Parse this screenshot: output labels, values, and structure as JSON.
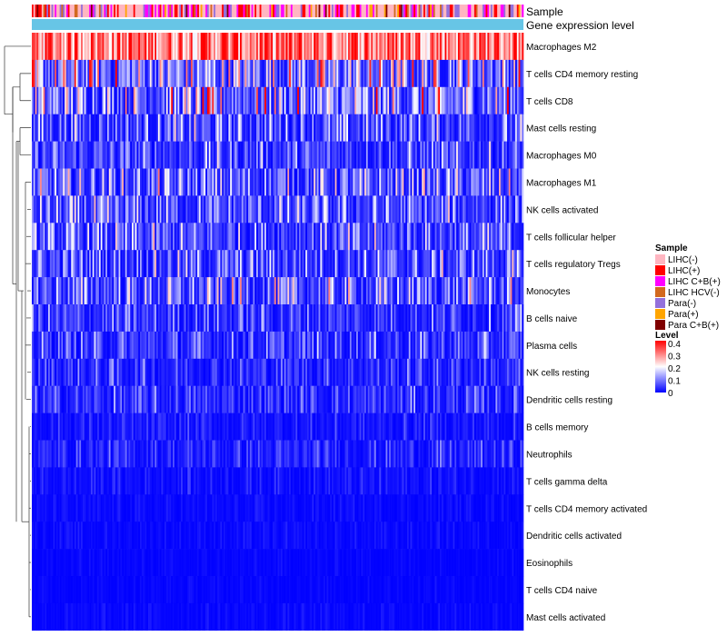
{
  "chart_data": {
    "type": "heatmap",
    "annotation_tracks": [
      "Sample",
      "Gene expression level"
    ],
    "rows": [
      {
        "label": "Macrophages M2",
        "mean": 0.3
      },
      {
        "label": "T cells CD4 memory resting",
        "mean": 0.13
      },
      {
        "label": "T cells CD8",
        "mean": 0.12
      },
      {
        "label": "Mast cells resting",
        "mean": 0.07
      },
      {
        "label": "Macrophages M0",
        "mean": 0.06
      },
      {
        "label": "Macrophages M1",
        "mean": 0.08
      },
      {
        "label": "NK cells activated",
        "mean": 0.07
      },
      {
        "label": "T cells follicular helper",
        "mean": 0.07
      },
      {
        "label": "T cells regulatory  Tregs",
        "mean": 0.07
      },
      {
        "label": "Monocytes",
        "mean": 0.08
      },
      {
        "label": "B cells naive",
        "mean": 0.05
      },
      {
        "label": "Plasma cells",
        "mean": 0.05
      },
      {
        "label": "NK cells resting",
        "mean": 0.04
      },
      {
        "label": "Dendritic cells resting",
        "mean": 0.04
      },
      {
        "label": "B cells memory",
        "mean": 0.02
      },
      {
        "label": "Neutrophils",
        "mean": 0.03
      },
      {
        "label": "T cells gamma delta",
        "mean": 0.015
      },
      {
        "label": "T cells CD4 memory activated",
        "mean": 0.008
      },
      {
        "label": "Dendritic cells activated",
        "mean": 0.008
      },
      {
        "label": "Eosinophils",
        "mean": 0.005
      },
      {
        "label": "T cells CD4 naive",
        "mean": 0.005
      },
      {
        "label": "Mast cells activated",
        "mean": 0.007
      }
    ],
    "legend": {
      "sample": {
        "title": "Sample",
        "entries": [
          {
            "label": "LIHC(-)",
            "color": "#ffb6c1"
          },
          {
            "label": "LIHC(+)",
            "color": "#ff0000"
          },
          {
            "label": "LIHC C+B(+)",
            "color": "#ff00ff"
          },
          {
            "label": "LIHC HCV(-)",
            "color": "#d2691e"
          },
          {
            "label": "Para(-)",
            "color": "#9370db"
          },
          {
            "label": "Para(+)",
            "color": "#ffa500"
          },
          {
            "label": "Para C+B(+)",
            "color": "#800000"
          }
        ]
      },
      "level": {
        "title": "Level",
        "ticks": [
          "0.4",
          "0.3",
          "0.2",
          "0.1",
          "0"
        ],
        "range": [
          0,
          0.4
        ],
        "colors": [
          "#0000ff",
          "#ffffff",
          "#ff0000"
        ]
      }
    },
    "gene_expression_color": "#67c5e6"
  }
}
